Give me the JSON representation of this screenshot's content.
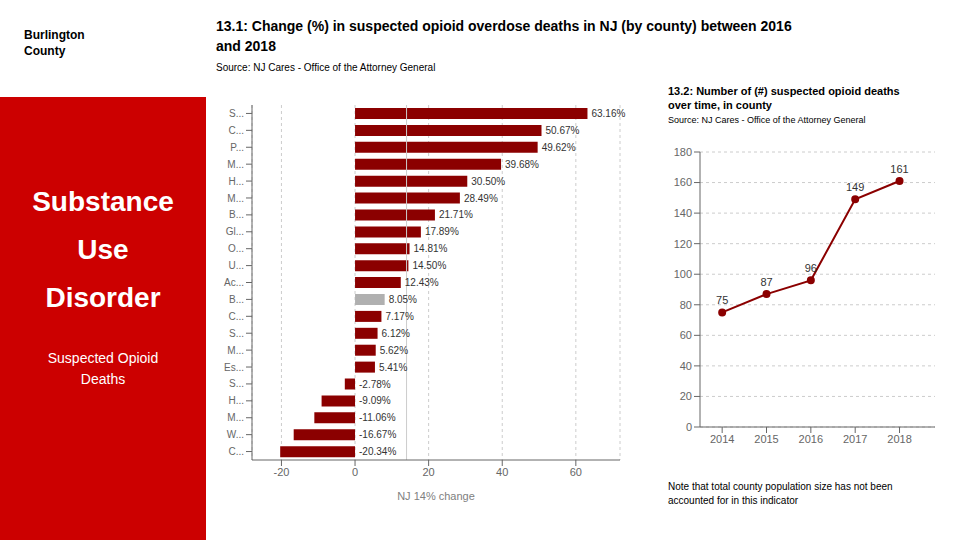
{
  "chart_data": [
    {
      "type": "bar",
      "title": "13.1: Change (%) in suspected opioid overdose deaths in NJ (by county) between 2016\nand 2018",
      "subtitle": "Source: NJ Cares - Office of the Attorney General",
      "annotations": [
        "Burlington\nCounty",
        "Substance",
        "Use",
        "Disorder",
        "Suspected Opioid\nDeaths"
      ],
      "orientation": "horizontal",
      "categories": [
        "S...",
        "C...",
        "P...",
        "M...",
        "H...",
        "M...",
        "B...",
        "Gl...",
        "O...",
        "U...",
        "Ac...",
        "B...",
        "C...",
        "S...",
        "M...",
        "Es...",
        "S...",
        "H...",
        "M...",
        "W...",
        "C..."
      ],
      "values": [
        63.16,
        50.67,
        49.62,
        39.68,
        30.5,
        28.49,
        21.71,
        17.89,
        14.81,
        14.5,
        12.43,
        8.05,
        7.17,
        6.12,
        5.62,
        5.41,
        -2.78,
        -9.09,
        -11.06,
        -16.67,
        -20.34
      ],
      "value_labels": [
        "63.16%",
        "50.67%",
        "49.62%",
        "39.68%",
        "30.50%",
        "28.49%",
        "21.71%",
        "17.89%",
        "14.81%",
        "14.50%",
        "12.43%",
        "8.05%",
        "7.17%",
        "6.12%",
        "5.62%",
        "5.41%",
        "-2.78%",
        "-9.09%",
        "-11.06%",
        "-16.67%",
        "-20.34%"
      ],
      "colors": [
        "#8B0000",
        "#8B0000",
        "#8B0000",
        "#8B0000",
        "#8B0000",
        "#8B0000",
        "#8B0000",
        "#8B0000",
        "#8B0000",
        "#8B0000",
        "#8B0000",
        "#b0b0b0",
        "#8B0000",
        "#8B0000",
        "#8B0000",
        "#8B0000",
        "#8B0000",
        "#8B0000",
        "#8B0000",
        "#8B0000",
        "#8B0000"
      ],
      "xlim": [
        -28,
        72
      ],
      "xticks": [
        -20,
        0,
        20,
        40,
        60
      ],
      "xlabel": "NJ 14% change",
      "reference_x": 14.0,
      "grid": true,
      "data_labels": true
    },
    {
      "type": "line",
      "title": "13.2: Number of (#) suspected opioid deaths\nover time, in county",
      "subtitle": "Source: NJ Cares - Office of the Attorney General",
      "annotations": [
        "Note that total county population size has not been\naccounted for in this indicator"
      ],
      "x": [
        2014,
        2015,
        2016,
        2017,
        2018
      ],
      "values": [
        75,
        87,
        96,
        149,
        161
      ],
      "color": "#8B0000",
      "marker": "circle",
      "xlim": [
        2013.5,
        2018.8
      ],
      "xticks": [
        2014,
        2015,
        2016,
        2017,
        2018
      ],
      "ylim": [
        0,
        180
      ],
      "yticks": [
        0,
        20,
        40,
        60,
        80,
        100,
        120,
        140,
        160,
        180
      ],
      "grid": true,
      "data_labels": true
    }
  ]
}
